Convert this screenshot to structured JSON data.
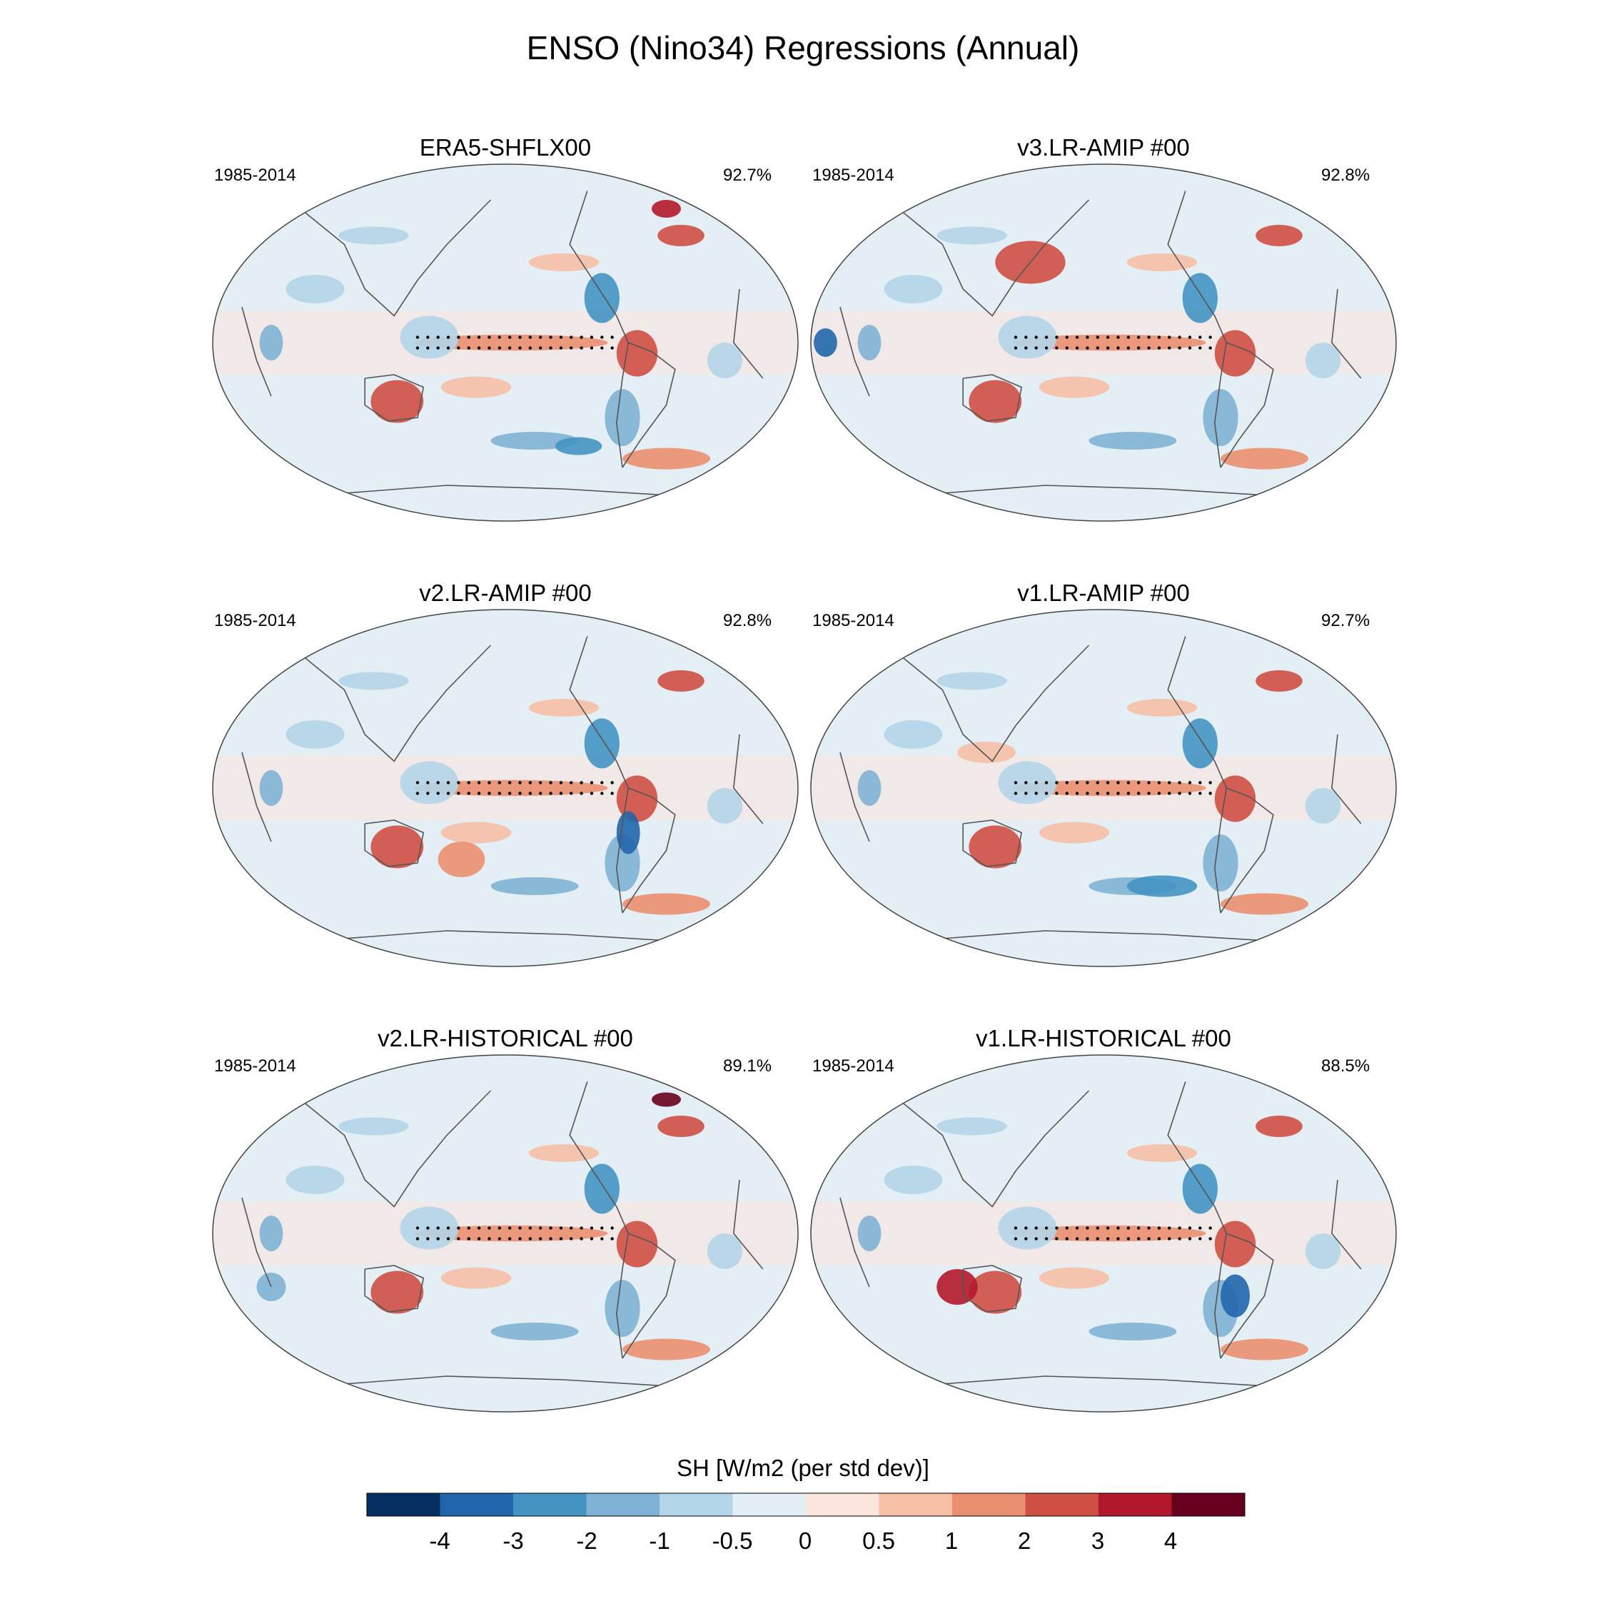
{
  "chart_data": {
    "type": "heatmap",
    "title": "ENSO (Nino34) Regressions (Annual)",
    "panels": [
      {
        "title": "ERA5-SHFLX00",
        "period": "1985-2014",
        "pattern_correlation": "92.7%"
      },
      {
        "title": "v3.LR-AMIP  #00",
        "period": "1985-2014",
        "pattern_correlation": "92.8%"
      },
      {
        "title": "v2.LR-AMIP  #00",
        "period": "1985-2014",
        "pattern_correlation": "92.8%"
      },
      {
        "title": "v1.LR-AMIP  #00",
        "period": "1985-2014",
        "pattern_correlation": "92.7%"
      },
      {
        "title": "v2.LR-HISTORICAL  #00",
        "period": "1985-2014",
        "pattern_correlation": "89.1%"
      },
      {
        "title": "v1.LR-HISTORICAL  #00",
        "period": "1985-2014",
        "pattern_correlation": "88.5%"
      }
    ],
    "colorbar": {
      "label": "SH [W/m2 (per std dev)]",
      "levels": [
        "-4",
        "-3",
        "-2",
        "-1",
        "-0.5",
        "0",
        "0.5",
        "1",
        "2",
        "3",
        "4"
      ],
      "colors": [
        "#053061",
        "#2166ac",
        "#4393c3",
        "#7fb3d5",
        "#b2d5e8",
        "#e4eef5",
        "#fbe5dc",
        "#f6bfa6",
        "#ea8f70",
        "#cf4f44",
        "#b2182b",
        "#67001f"
      ]
    }
  }
}
